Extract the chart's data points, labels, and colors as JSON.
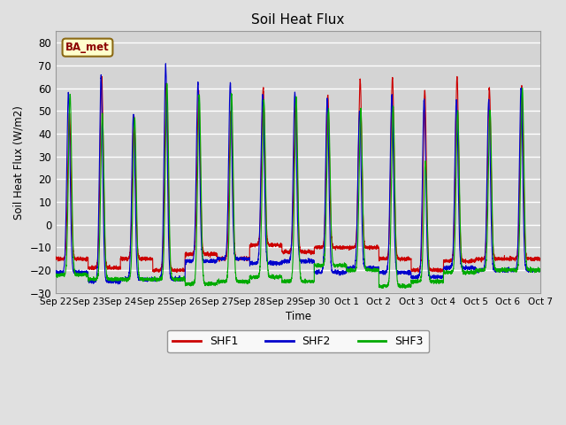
{
  "title": "Soil Heat Flux",
  "ylabel": "Soil Heat Flux (W/m2)",
  "xlabel": "Time",
  "annotation": "BA_met",
  "ylim": [
    -30,
    85
  ],
  "yticks": [
    -30,
    -20,
    -10,
    0,
    10,
    20,
    30,
    40,
    50,
    60,
    70,
    80
  ],
  "legend": [
    "SHF1",
    "SHF2",
    "SHF3"
  ],
  "colors": [
    "#cc0000",
    "#0000cc",
    "#00aa00"
  ],
  "background_color": "#e0e0e0",
  "plot_bg_color": "#d4d4d4",
  "grid_color": "#ffffff",
  "xtick_labels": [
    "Sep 22",
    "Sep 23",
    "Sep 24",
    "Sep 25",
    "Sep 26",
    "Sep 27",
    "Sep 28",
    "Sep 29",
    "Sep 30",
    "Oct 1",
    "Oct 2",
    "Oct 3",
    "Oct 4",
    "Oct 5",
    "Oct 6",
    "Oct 7"
  ],
  "num_days": 15,
  "points_per_day": 288,
  "shf1_peaks": [
    49,
    65,
    47,
    62,
    58,
    50,
    60,
    54,
    57,
    64,
    65,
    59,
    65,
    60,
    61
  ],
  "shf2_peaks": [
    58,
    65,
    48,
    70,
    62,
    62,
    57,
    58,
    55,
    50,
    57,
    55,
    55,
    55,
    60
  ],
  "shf3_peaks": [
    57,
    49,
    47,
    62,
    57,
    58,
    55,
    56,
    51,
    51,
    52,
    28,
    50,
    50,
    60
  ],
  "shf1_troughs": [
    -15,
    -19,
    -15,
    -20,
    -13,
    -15,
    -9,
    -12,
    -10,
    -10,
    -15,
    -20,
    -16,
    -15,
    -15
  ],
  "shf2_troughs": [
    -21,
    -25,
    -24,
    -24,
    -16,
    -15,
    -17,
    -16,
    -21,
    -19,
    -21,
    -23,
    -19,
    -20,
    -20
  ],
  "shf3_troughs": [
    -22,
    -24,
    -24,
    -24,
    -26,
    -25,
    -23,
    -25,
    -18,
    -20,
    -27,
    -25,
    -21,
    -20,
    -20
  ],
  "shf1_peak_offsets": [
    0.0,
    0.0,
    0.0,
    0.0,
    0.0,
    0.0,
    0.0,
    0.0,
    0.0,
    0.0,
    0.0,
    0.0,
    0.0,
    0.0,
    0.0
  ],
  "shf2_peak_offsets": [
    -0.03,
    -0.02,
    -0.02,
    -0.02,
    -0.02,
    -0.02,
    -0.02,
    -0.02,
    -0.02,
    -0.02,
    -0.02,
    -0.02,
    -0.02,
    -0.02,
    -0.02
  ],
  "shf3_peak_offsets": [
    0.02,
    0.02,
    0.02,
    0.02,
    0.02,
    0.02,
    0.02,
    0.02,
    0.02,
    0.02,
    0.02,
    0.02,
    0.02,
    0.02,
    0.02
  ]
}
